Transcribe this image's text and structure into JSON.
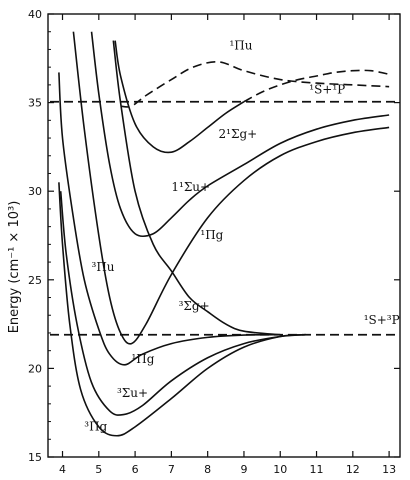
{
  "chart_data": {
    "type": "line",
    "title": "",
    "xlabel": "",
    "ylabel": "Energy (cm⁻¹ × 10³)",
    "xlim": [
      3.6,
      13.3
    ],
    "ylim": [
      15,
      40
    ],
    "x_ticks": [
      4,
      5,
      6,
      7,
      8,
      9,
      10,
      11,
      12,
      13
    ],
    "x_tick_labels": [
      "4",
      "5",
      "6",
      "7",
      "8",
      "9",
      "10",
      "11",
      "12",
      "13"
    ],
    "y_ticks": [
      15,
      20,
      25,
      30,
      35,
      40
    ],
    "y_tick_labels": [
      "15",
      "20",
      "25",
      "30",
      "35",
      "40"
    ],
    "grid": false,
    "asymptotes": [
      {
        "label": "¹S+¹P",
        "y": 35.05
      },
      {
        "label": "¹S+³P",
        "y": 21.9
      }
    ],
    "series": [
      {
        "name": "³Πg",
        "style": "solid",
        "x": [
          3.9,
          4.0,
          4.2,
          4.5,
          5.0,
          5.5,
          6.0,
          7.0,
          8.0,
          9.0,
          10.0,
          10.7
        ],
        "y": [
          30.5,
          27.0,
          22.5,
          18.8,
          16.7,
          16.2,
          16.7,
          18.3,
          20.0,
          21.2,
          21.8,
          21.9
        ]
      },
      {
        "name": "³Σu+",
        "style": "solid",
        "x": [
          3.95,
          4.1,
          4.4,
          4.8,
          5.3,
          5.7,
          6.2,
          7.0,
          8.0,
          9.0,
          10.0,
          10.7
        ],
        "y": [
          30.0,
          26.5,
          22.5,
          19.2,
          17.6,
          17.4,
          17.9,
          19.3,
          20.6,
          21.4,
          21.8,
          21.9
        ]
      },
      {
        "name": "³Πu",
        "style": "solid",
        "x": [
          3.9,
          4.0,
          4.3,
          4.6,
          5.0,
          5.3,
          5.7,
          6.2,
          7.0,
          8.0,
          9.0,
          10.0
        ],
        "y": [
          36.7,
          33.0,
          28.5,
          25.0,
          22.2,
          20.8,
          20.2,
          20.8,
          21.4,
          21.75,
          21.88,
          21.9
        ]
      },
      {
        "name": "¹Πg",
        "style": "solid",
        "x": [
          4.3,
          4.6,
          5.0,
          5.3,
          5.6,
          5.9,
          6.3,
          7.0,
          8.0,
          9.0,
          10.0,
          11.0,
          12.0,
          13.0
        ],
        "y": [
          39.0,
          33.5,
          27.5,
          24.0,
          22.0,
          21.4,
          22.5,
          25.3,
          28.5,
          30.6,
          32.0,
          32.8,
          33.3,
          33.6
        ]
      },
      {
        "name": "³Σg+",
        "style": "solid",
        "x": [
          5.4,
          5.6,
          6.0,
          6.5,
          7.0,
          7.5,
          8.0,
          8.5,
          9.0,
          10.0
        ],
        "y": [
          38.5,
          35.0,
          30.0,
          27.0,
          25.5,
          24.0,
          23.2,
          22.5,
          22.1,
          21.9
        ]
      },
      {
        "name": "1¹Σu+",
        "style": "solid",
        "x": [
          4.8,
          5.0,
          5.3,
          5.6,
          6.0,
          6.5,
          7.0,
          7.5,
          8.0,
          9.0,
          10.0,
          11.0,
          12.0,
          13.0
        ],
        "y": [
          39.0,
          35.5,
          31.5,
          29.0,
          27.6,
          27.6,
          28.5,
          29.5,
          30.3,
          31.5,
          32.7,
          33.5,
          34.0,
          34.3
        ]
      },
      {
        "name": "¹Πu",
        "style": "solid",
        "x": [
          5.45,
          5.6,
          6.0,
          6.5,
          7.0,
          7.5,
          8.0,
          8.5,
          9.0
        ],
        "y": [
          38.5,
          36.5,
          33.8,
          32.5,
          32.2,
          32.8,
          33.6,
          34.4,
          35.05
        ]
      },
      {
        "name": "¹Πu",
        "style": "dashed",
        "x": [
          5.6,
          5.9,
          6.3,
          7.0,
          7.6,
          8.3,
          9.0,
          10.0,
          11.0,
          12.0,
          13.0
        ],
        "y": [
          34.8,
          34.8,
          35.4,
          36.3,
          37.0,
          37.3,
          36.8,
          36.3,
          36.1,
          36.0,
          35.9
        ]
      },
      {
        "name": "2¹Σg+",
        "style": "dashed",
        "x": [
          9.0,
          9.5,
          10.0,
          10.5,
          11.0,
          11.5,
          12.0,
          12.5,
          13.0
        ],
        "y": [
          35.05,
          35.6,
          36.0,
          36.3,
          36.5,
          36.7,
          36.8,
          36.8,
          36.6
        ]
      }
    ],
    "annotations": [
      {
        "label": "¹Πu",
        "x": 8.6,
        "y": 38.0
      },
      {
        "label": "¹S+¹P",
        "x": 10.8,
        "y": 35.5
      },
      {
        "label": "2¹Σg+",
        "x": 8.3,
        "y": 33.0
      },
      {
        "label": "1¹Σu+",
        "x": 7.0,
        "y": 30.0
      },
      {
        "label": "¹Πg",
        "x": 7.8,
        "y": 27.3
      },
      {
        "label": "³Πu",
        "x": 4.8,
        "y": 25.5
      },
      {
        "label": "³Σg+",
        "x": 7.2,
        "y": 23.3
      },
      {
        "label": "¹S+³P",
        "x": 12.3,
        "y": 22.5
      },
      {
        "label": "¹Πg",
        "x": 5.9,
        "y": 20.3
      },
      {
        "label": "³Σu+",
        "x": 5.5,
        "y": 18.4
      },
      {
        "label": "³Πg",
        "x": 4.6,
        "y": 16.5
      }
    ]
  }
}
